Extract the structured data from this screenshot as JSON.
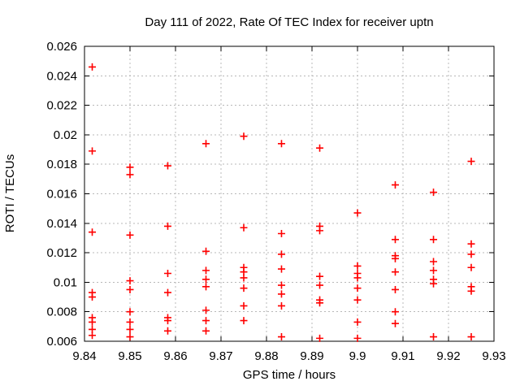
{
  "colors": {
    "background": "#ffffff",
    "border": "#000000",
    "grid": "#b8b8b8",
    "text": "#000000",
    "marker": "#ff0000"
  },
  "chart_data": {
    "type": "scatter",
    "title": "Day 111 of 2022, Rate Of TEC Index for receiver uptn",
    "xlabel": "GPS time / hours",
    "ylabel": "ROTI / TECUs",
    "xlim": [
      9.84,
      9.93
    ],
    "ylim": [
      0.006,
      0.026
    ],
    "xticks": {
      "values": [
        9.84,
        9.85,
        9.86,
        9.87,
        9.88,
        9.89,
        9.9,
        9.91,
        9.92,
        9.93
      ],
      "labels": [
        "9.84",
        "9.85",
        "9.86",
        "9.87",
        "9.88",
        "9.89",
        "9.9",
        "9.91",
        "9.92",
        "9.93"
      ]
    },
    "yticks": {
      "values": [
        0.006,
        0.008,
        0.01,
        0.012,
        0.014,
        0.016,
        0.018,
        0.02,
        0.022,
        0.024,
        0.026
      ],
      "labels": [
        "0.006",
        "0.008",
        "0.01",
        "0.012",
        "0.014",
        "0.016",
        "0.018",
        "0.02",
        "0.022",
        "0.024",
        "0.026"
      ]
    },
    "grid": true,
    "legend_position": "none",
    "marker": {
      "shape": "plus",
      "color": "#ff0000",
      "size": 9
    },
    "series": [
      {
        "name": "ROTI",
        "color": "#ff0000",
        "points": [
          [
            9.8417,
            0.0246
          ],
          [
            9.8417,
            0.0189
          ],
          [
            9.8417,
            0.0134
          ],
          [
            9.8417,
            0.0093
          ],
          [
            9.8417,
            0.009
          ],
          [
            9.8417,
            0.0076
          ],
          [
            9.8417,
            0.0073
          ],
          [
            9.8417,
            0.0068
          ],
          [
            9.8417,
            0.0064
          ],
          [
            9.85,
            0.0178
          ],
          [
            9.85,
            0.0173
          ],
          [
            9.85,
            0.0132
          ],
          [
            9.85,
            0.0101
          ],
          [
            9.85,
            0.0095
          ],
          [
            9.85,
            0.008
          ],
          [
            9.85,
            0.0073
          ],
          [
            9.85,
            0.0068
          ],
          [
            9.85,
            0.0063
          ],
          [
            9.8583,
            0.0179
          ],
          [
            9.8583,
            0.0138
          ],
          [
            9.8583,
            0.0106
          ],
          [
            9.8583,
            0.0093
          ],
          [
            9.8583,
            0.0076
          ],
          [
            9.8583,
            0.0074
          ],
          [
            9.8583,
            0.0067
          ],
          [
            9.8667,
            0.0194
          ],
          [
            9.8667,
            0.0121
          ],
          [
            9.8667,
            0.0108
          ],
          [
            9.8667,
            0.0102
          ],
          [
            9.8667,
            0.0097
          ],
          [
            9.8667,
            0.0081
          ],
          [
            9.8667,
            0.0074
          ],
          [
            9.8667,
            0.0067
          ],
          [
            9.875,
            0.0199
          ],
          [
            9.875,
            0.0137
          ],
          [
            9.875,
            0.011
          ],
          [
            9.875,
            0.0107
          ],
          [
            9.875,
            0.0103
          ],
          [
            9.875,
            0.0096
          ],
          [
            9.875,
            0.0084
          ],
          [
            9.875,
            0.0074
          ],
          [
            9.8833,
            0.0194
          ],
          [
            9.8833,
            0.0133
          ],
          [
            9.8833,
            0.0119
          ],
          [
            9.8833,
            0.0109
          ],
          [
            9.8833,
            0.0098
          ],
          [
            9.8833,
            0.0092
          ],
          [
            9.8833,
            0.0084
          ],
          [
            9.8833,
            0.0063
          ],
          [
            9.8917,
            0.0191
          ],
          [
            9.8917,
            0.0138
          ],
          [
            9.8917,
            0.0135
          ],
          [
            9.8917,
            0.0104
          ],
          [
            9.8917,
            0.0098
          ],
          [
            9.8917,
            0.0088
          ],
          [
            9.8917,
            0.0086
          ],
          [
            9.8917,
            0.0062
          ],
          [
            9.9,
            0.0147
          ],
          [
            9.9,
            0.0111
          ],
          [
            9.9,
            0.0106
          ],
          [
            9.9,
            0.0103
          ],
          [
            9.9,
            0.0096
          ],
          [
            9.9,
            0.0088
          ],
          [
            9.9,
            0.0073
          ],
          [
            9.9,
            0.0062
          ],
          [
            9.9083,
            0.0166
          ],
          [
            9.9083,
            0.0129
          ],
          [
            9.9083,
            0.0118
          ],
          [
            9.9083,
            0.0116
          ],
          [
            9.9083,
            0.0107
          ],
          [
            9.9083,
            0.0095
          ],
          [
            9.9083,
            0.008
          ],
          [
            9.9083,
            0.0072
          ],
          [
            9.9167,
            0.0161
          ],
          [
            9.9167,
            0.0129
          ],
          [
            9.9167,
            0.0114
          ],
          [
            9.9167,
            0.0108
          ],
          [
            9.9167,
            0.0102
          ],
          [
            9.9167,
            0.0099
          ],
          [
            9.9167,
            0.0063
          ],
          [
            9.925,
            0.0182
          ],
          [
            9.925,
            0.0126
          ],
          [
            9.925,
            0.0119
          ],
          [
            9.925,
            0.011
          ],
          [
            9.925,
            0.0097
          ],
          [
            9.925,
            0.0094
          ],
          [
            9.925,
            0.0063
          ]
        ]
      }
    ]
  }
}
